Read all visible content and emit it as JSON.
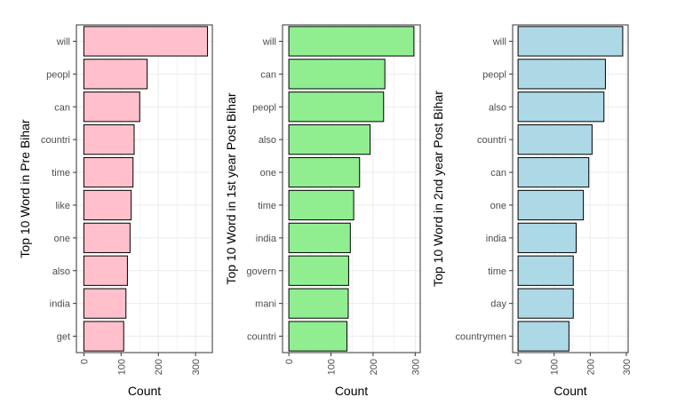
{
  "colors": {
    "pre": "#ffc0cb",
    "year1": "#90ee90",
    "year2": "#add8e6",
    "bar_outline": "#000000",
    "grid": "#ebebeb",
    "panel_border": "#333333"
  },
  "chart_data": [
    {
      "type": "bar",
      "orientation": "horizontal",
      "color_key": "pre",
      "ylabel": "Top 10 Word in Pre Bihar",
      "xlabel": "Count",
      "xlim": [
        -20,
        345
      ],
      "xticks": [
        0,
        100,
        200,
        300
      ],
      "grid": true,
      "categories": [
        "will",
        "peopl",
        "can",
        "countri",
        "time",
        "like",
        "one",
        "also",
        "india",
        "get"
      ],
      "values": [
        332,
        170,
        150,
        135,
        132,
        127,
        124,
        117,
        113,
        107
      ]
    },
    {
      "type": "bar",
      "orientation": "horizontal",
      "color_key": "year1",
      "ylabel": "Top 10 Word in 1st year Post Bihar",
      "xlabel": "Count",
      "xlim": [
        -15,
        312
      ],
      "xticks": [
        0,
        100,
        200,
        300
      ],
      "grid": true,
      "categories": [
        "will",
        "can",
        "peopl",
        "also",
        "one",
        "time",
        "india",
        "govern",
        "mani",
        "countri"
      ],
      "values": [
        297,
        228,
        225,
        193,
        168,
        154,
        146,
        142,
        141,
        138
      ]
    },
    {
      "type": "bar",
      "orientation": "horizontal",
      "color_key": "year2",
      "ylabel": "Top 10 Word in 2nd year Post Bihar",
      "xlabel": "Count",
      "xlim": [
        -15,
        305
      ],
      "xticks": [
        0,
        100,
        200,
        300
      ],
      "grid": true,
      "categories": [
        "will",
        "peopl",
        "also",
        "countri",
        "can",
        "one",
        "india",
        "time",
        "day",
        "countrymen"
      ],
      "values": [
        290,
        242,
        238,
        205,
        196,
        181,
        161,
        153,
        153,
        141
      ]
    }
  ]
}
